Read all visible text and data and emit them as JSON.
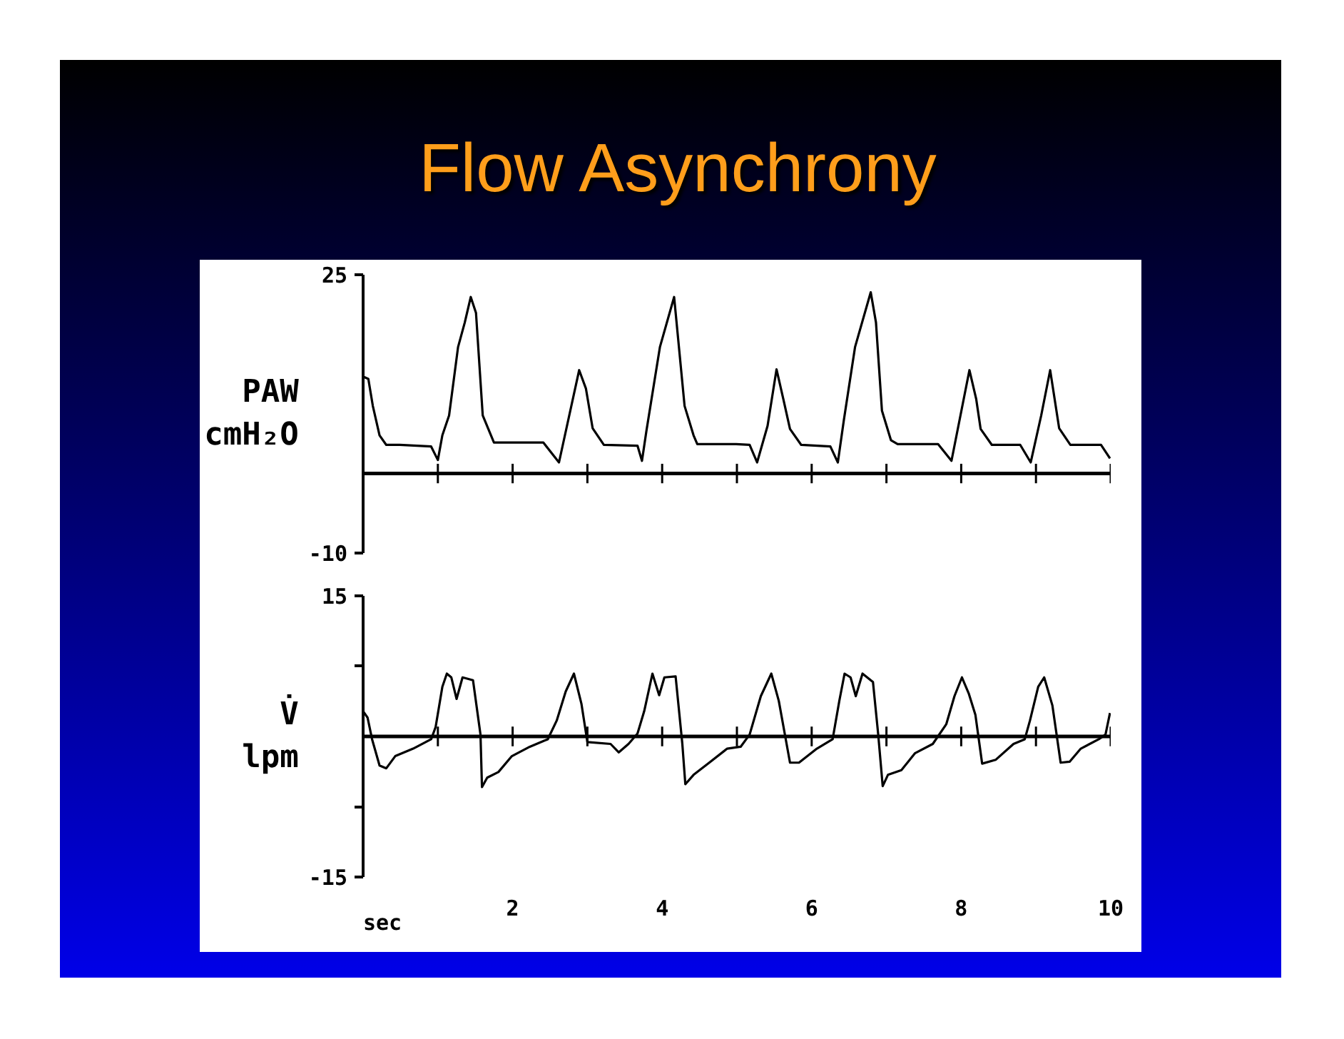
{
  "chart_data": [
    {
      "type": "line",
      "title": "Flow Asynchrony",
      "ylabel": "PAW\ncmH₂O",
      "xlim": [
        0,
        10
      ],
      "ylim": [
        -10,
        25
      ],
      "yticks": [
        25,
        -10
      ],
      "xticks": [
        {
          "value": 1,
          "label": null
        },
        2,
        {
          "value": 3,
          "label": null
        },
        4,
        {
          "value": 5,
          "label": null
        },
        6,
        {
          "value": 7,
          "label": null
        },
        8,
        {
          "value": 9,
          "label": null
        },
        10
      ],
      "tick_labels": "y",
      "ref_lines": [
        {
          "axis": "y",
          "value": 0,
          "label": null
        }
      ],
      "series": [
        {
          "color": "#000000",
          "x": [
            0,
            0.07,
            0.13,
            0.22,
            0.31,
            0.49,
            0.91,
            1.0,
            1.06,
            1.15,
            1.27,
            1.36,
            1.44,
            1.51,
            1.6,
            1.75,
            2.41,
            2.62,
            2.89,
            2.98,
            3.07,
            3.22,
            3.67,
            3.73,
            3.79,
            3.97,
            4.16,
            4.3,
            4.42,
            4.47,
            4.99,
            5.17,
            5.27,
            5.41,
            5.53,
            5.62,
            5.71,
            5.86,
            6.25,
            6.35,
            6.43,
            6.58,
            6.79,
            6.86,
            6.94,
            7.06,
            7.15,
            7.69,
            7.87,
            7.99,
            8.11,
            8.2,
            8.26,
            8.41,
            8.79,
            8.93,
            9.07,
            9.19,
            9.31,
            9.46,
            9.87,
            9.99
          ],
          "values": [
            12.2,
            11.9,
            8.5,
            4.8,
            3.6,
            3.6,
            3.4,
            1.7,
            4.8,
            7.3,
            15.9,
            19.0,
            22.2,
            20.2,
            7.3,
            3.9,
            3.9,
            1.4,
            13.0,
            10.7,
            5.7,
            3.6,
            3.5,
            1.6,
            5.4,
            15.9,
            22.2,
            8.5,
            4.8,
            3.7,
            3.7,
            3.6,
            1.4,
            6.0,
            13.1,
            9.4,
            5.6,
            3.6,
            3.4,
            1.4,
            6.7,
            15.9,
            22.8,
            19.0,
            7.9,
            4.2,
            3.7,
            3.7,
            1.6,
            7.3,
            13.0,
            9.4,
            5.6,
            3.6,
            3.6,
            1.4,
            7.3,
            13.0,
            5.7,
            3.6,
            3.6,
            1.9
          ]
        }
      ]
    },
    {
      "type": "line",
      "ylabel": "V̇\nlpm",
      "xlabel": "sec",
      "xlim": [
        0,
        10
      ],
      "ylim": [
        -15,
        15
      ],
      "yticks": [
        15,
        {
          "value": 7.5,
          "label": null
        },
        {
          "value": -7.5,
          "label": null
        },
        -15
      ],
      "xticks": [
        {
          "value": 1,
          "label": null
        },
        2,
        {
          "value": 3,
          "label": null
        },
        4,
        {
          "value": 5,
          "label": null
        },
        6,
        {
          "value": 7,
          "label": null
        },
        8,
        {
          "value": 9,
          "label": null
        },
        10
      ],
      "ref_lines": [
        {
          "axis": "y",
          "value": 0,
          "label": null
        }
      ],
      "series": [
        {
          "color": "#000000",
          "x": [
            0,
            0.06,
            0.12,
            0.22,
            0.31,
            0.43,
            0.67,
            0.91,
            0.97,
            1.06,
            1.12,
            1.18,
            1.25,
            1.33,
            1.47,
            1.57,
            1.59,
            1.66,
            1.81,
            1.99,
            2.23,
            2.47,
            2.59,
            2.71,
            2.82,
            2.92,
            3.0,
            3.31,
            3.42,
            3.55,
            3.67,
            3.76,
            3.87,
            3.96,
            4.03,
            4.18,
            4.27,
            4.31,
            4.42,
            4.63,
            4.87,
            5.05,
            5.17,
            5.32,
            5.46,
            5.56,
            5.71,
            5.83,
            6.07,
            6.28,
            6.37,
            6.44,
            6.52,
            6.59,
            6.68,
            6.82,
            6.89,
            6.95,
            7.02,
            7.2,
            7.38,
            7.62,
            7.8,
            7.91,
            8.01,
            8.1,
            8.19,
            8.28,
            8.46,
            8.7,
            8.85,
            8.92,
            9.03,
            9.11,
            9.22,
            9.33,
            9.45,
            9.6,
            9.84,
            9.93,
            9.99
          ],
          "values": [
            2.7,
            2.0,
            -0.3,
            -3.1,
            -3.4,
            -2.1,
            -1.3,
            -0.3,
            1.0,
            5.3,
            6.7,
            6.3,
            4.0,
            6.3,
            6.0,
            0.2,
            -5.4,
            -4.4,
            -3.8,
            -2.1,
            -1.1,
            -0.3,
            1.7,
            4.8,
            6.7,
            3.5,
            -0.6,
            -0.8,
            -1.7,
            -0.8,
            0.3,
            2.7,
            6.7,
            4.4,
            6.3,
            6.4,
            -0.8,
            -5.1,
            -4.1,
            -2.8,
            -1.3,
            -1.1,
            0.2,
            4.3,
            6.7,
            3.8,
            -2.8,
            -2.8,
            -1.3,
            -0.3,
            3.8,
            6.7,
            6.3,
            4.3,
            6.7,
            5.8,
            0.2,
            -5.3,
            -4.1,
            -3.6,
            -1.8,
            -0.8,
            1.3,
            4.3,
            6.3,
            4.6,
            2.3,
            -2.9,
            -2.5,
            -0.8,
            -0.3,
            1.7,
            5.3,
            6.3,
            3.3,
            -2.8,
            -2.7,
            -1.3,
            -0.3,
            0.2,
            2.5
          ]
        }
      ]
    }
  ]
}
